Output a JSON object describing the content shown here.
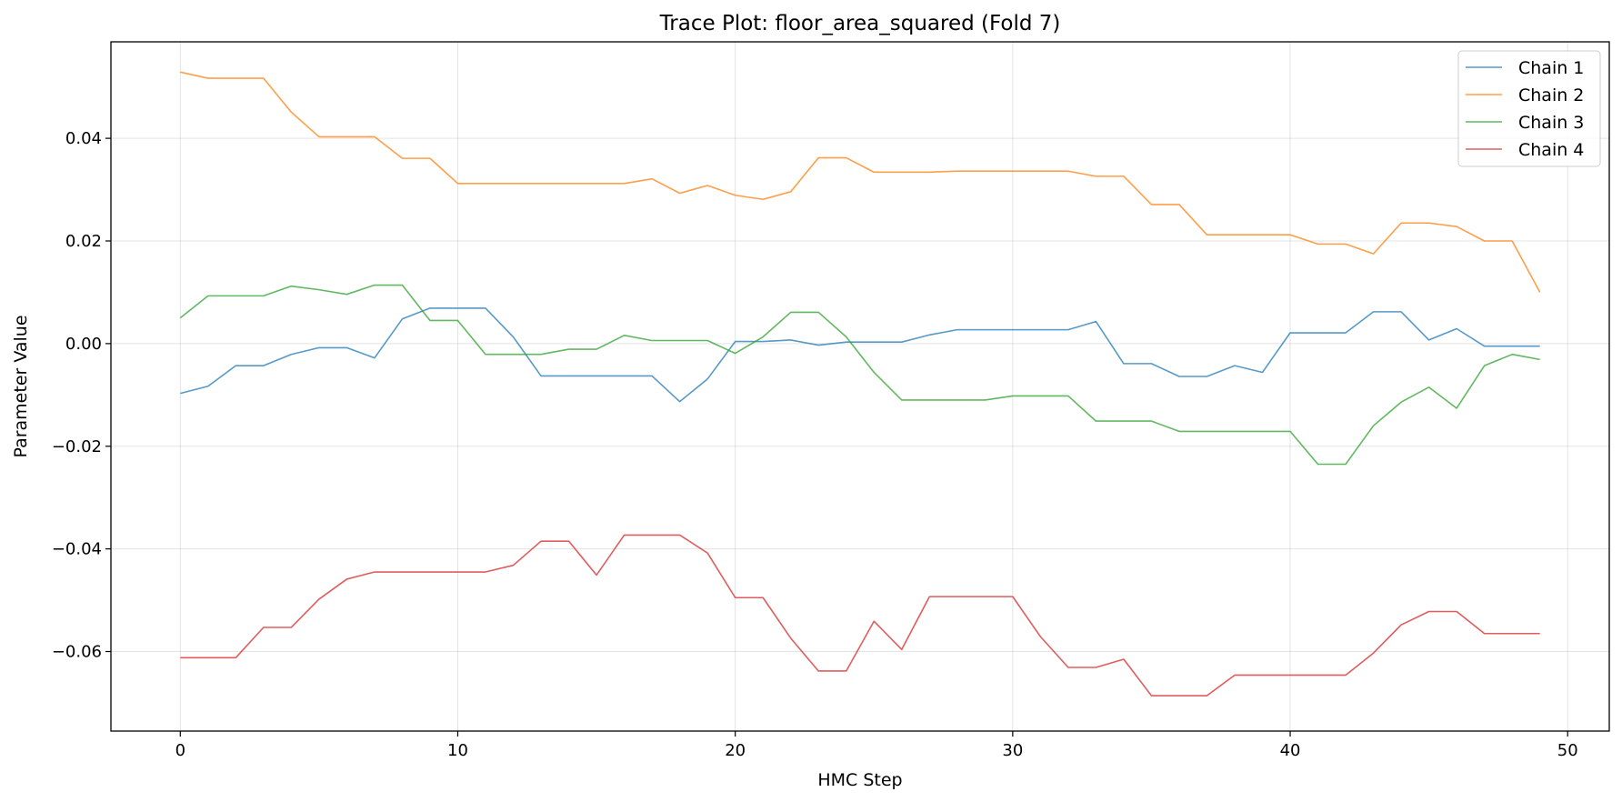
{
  "chart_data": {
    "type": "line",
    "title": "Trace Plot: floor_area_squared (Fold 7)",
    "xlabel": "HMC Step",
    "ylabel": "Parameter Value",
    "xlim": [
      -2.5,
      51.5
    ],
    "ylim": [
      -0.0755,
      0.0588
    ],
    "xticks": [
      0,
      10,
      20,
      30,
      40,
      50
    ],
    "yticks": [
      -0.06,
      -0.04,
      -0.02,
      0.0,
      0.02,
      0.04
    ],
    "ytick_labels": [
      "−0.06",
      "−0.04",
      "−0.02",
      "0.00",
      "0.02",
      "0.04"
    ],
    "grid": true,
    "legend_position": "top-right",
    "x": [
      0,
      1,
      2,
      3,
      4,
      5,
      6,
      7,
      8,
      9,
      10,
      11,
      12,
      13,
      14,
      15,
      16,
      17,
      18,
      19,
      20,
      21,
      22,
      23,
      24,
      25,
      26,
      27,
      28,
      29,
      30,
      31,
      32,
      33,
      34,
      35,
      36,
      37,
      38,
      39,
      40,
      41,
      42,
      43,
      44,
      45,
      46,
      47,
      48,
      49
    ],
    "series": [
      {
        "name": "Chain 1",
        "color": "#1f77b4",
        "values": [
          -0.0097,
          -0.0083,
          -0.0043,
          -0.0043,
          -0.0021,
          -0.0008,
          -0.0008,
          -0.0028,
          0.0048,
          0.0069,
          0.0069,
          0.0069,
          0.0013,
          -0.0063,
          -0.0063,
          -0.0063,
          -0.0063,
          -0.0063,
          -0.0113,
          -0.0069,
          0.0004,
          0.0004,
          0.0007,
          -0.0003,
          0.0003,
          0.0003,
          0.0003,
          0.0017,
          0.0027,
          0.0027,
          0.0027,
          0.0027,
          0.0027,
          0.0043,
          -0.0039,
          -0.0039,
          -0.0064,
          -0.0064,
          -0.0043,
          -0.0056,
          0.0021,
          0.0021,
          0.0021,
          0.0062,
          0.0062,
          0.0007,
          0.0029,
          -0.0005,
          -0.0005,
          -0.0005
        ]
      },
      {
        "name": "Chain 2",
        "color": "#ff7f0e",
        "values": [
          0.0529,
          0.0517,
          0.0517,
          0.0517,
          0.0451,
          0.0403,
          0.0403,
          0.0403,
          0.0361,
          0.0361,
          0.0312,
          0.0312,
          0.0312,
          0.0312,
          0.0312,
          0.0312,
          0.0312,
          0.0321,
          0.0293,
          0.0308,
          0.0289,
          0.0281,
          0.0296,
          0.0362,
          0.0362,
          0.0334,
          0.0334,
          0.0334,
          0.0336,
          0.0336,
          0.0336,
          0.0336,
          0.0336,
          0.0326,
          0.0326,
          0.0271,
          0.0271,
          0.0212,
          0.0212,
          0.0212,
          0.0212,
          0.0194,
          0.0194,
          0.0175,
          0.0235,
          0.0235,
          0.0228,
          0.02,
          0.02,
          0.01
        ]
      },
      {
        "name": "Chain 3",
        "color": "#2ca02c",
        "values": [
          0.005,
          0.0093,
          0.0093,
          0.0093,
          0.0112,
          0.0105,
          0.0096,
          0.0114,
          0.0114,
          0.0045,
          0.0045,
          -0.0021,
          -0.0021,
          -0.0021,
          -0.0011,
          -0.0011,
          0.0016,
          0.0006,
          0.0006,
          0.0006,
          -0.0019,
          0.0013,
          0.0061,
          0.0061,
          0.0013,
          -0.0056,
          -0.011,
          -0.011,
          -0.011,
          -0.011,
          -0.0102,
          -0.0102,
          -0.0102,
          -0.0151,
          -0.0151,
          -0.0151,
          -0.0171,
          -0.0171,
          -0.0171,
          -0.0171,
          -0.0171,
          -0.0235,
          -0.0235,
          -0.016,
          -0.0114,
          -0.0085,
          -0.0126,
          -0.0043,
          -0.0021,
          -0.0031
        ]
      },
      {
        "name": "Chain 4",
        "color": "#d62728",
        "values": [
          -0.0612,
          -0.0612,
          -0.0612,
          -0.0553,
          -0.0553,
          -0.0498,
          -0.0459,
          -0.0445,
          -0.0445,
          -0.0445,
          -0.0445,
          -0.0445,
          -0.0432,
          -0.0385,
          -0.0385,
          -0.0451,
          -0.0373,
          -0.0373,
          -0.0373,
          -0.0408,
          -0.0495,
          -0.0495,
          -0.0574,
          -0.0638,
          -0.0638,
          -0.0541,
          -0.0596,
          -0.0493,
          -0.0493,
          -0.0493,
          -0.0493,
          -0.0571,
          -0.0631,
          -0.0631,
          -0.0615,
          -0.0686,
          -0.0686,
          -0.0686,
          -0.0646,
          -0.0646,
          -0.0646,
          -0.0646,
          -0.0646,
          -0.0603,
          -0.0548,
          -0.0522,
          -0.0522,
          -0.0565,
          -0.0565,
          -0.0565
        ]
      }
    ]
  }
}
